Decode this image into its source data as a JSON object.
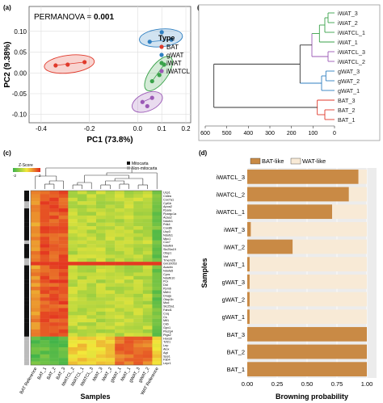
{
  "panels": {
    "a": {
      "label": "(a)"
    },
    "b": {
      "label": "(b)"
    },
    "c": {
      "label": "(c)"
    },
    "d": {
      "label": "(d)"
    }
  },
  "colors": {
    "BAT": "#e0392b",
    "gWAT": "#2f7fc1",
    "iWAT": "#3aa24a",
    "iWATCL": "#9b59b6",
    "bat_like": "#c98a45",
    "wat_like": "#f8ead6"
  },
  "chart_data": [
    {
      "type": "scatter",
      "panel": "(a)",
      "annotation_prefix": "PERMANOVA = ",
      "annotation_value": "0.001",
      "xlabel": "PC1 (73.8%)",
      "ylabel": "PC2 (9.38%)",
      "xlim": [
        -0.45,
        0.22
      ],
      "ylim": [
        -0.12,
        0.16
      ],
      "xticks": [
        "-0.4",
        "-0.2",
        "0.0",
        "0.1",
        "0.2"
      ],
      "xtick_values": [
        -0.4,
        -0.2,
        0.0,
        0.1,
        0.2
      ],
      "yticks": [
        "0.10",
        "0.05",
        "0.00",
        "-0.05",
        "-0.10"
      ],
      "ytick_values": [
        0.1,
        0.05,
        0.0,
        -0.05,
        -0.1
      ],
      "grid": true,
      "legend_title": "Type",
      "legend": [
        "BAT",
        "gWAT",
        "iWAT",
        "iWATCL"
      ],
      "series": [
        {
          "name": "BAT",
          "points": [
            [
              -0.34,
              0.018
            ],
            [
              -0.29,
              0.02
            ],
            [
              -0.22,
              0.026
            ]
          ]
        },
        {
          "name": "gWAT",
          "points": [
            [
              0.05,
              0.075
            ],
            [
              0.1,
              0.098
            ],
            [
              0.14,
              0.08
            ]
          ]
        },
        {
          "name": "iWAT",
          "points": [
            [
              0.06,
              -0.02
            ],
            [
              0.09,
              -0.005
            ],
            [
              0.11,
              0.02
            ]
          ]
        },
        {
          "name": "iWATCL",
          "points": [
            [
              0.02,
              -0.07
            ],
            [
              0.04,
              -0.08
            ],
            [
              0.06,
              -0.06
            ]
          ]
        }
      ]
    },
    {
      "type": "dendrogram",
      "panel": "(b)",
      "leaves": [
        "iWAT_3",
        "iWAT_2",
        "iWATCL_1",
        "iWAT_1",
        "iWATCL_3",
        "iWATCL_2",
        "gWAT_3",
        "gWAT_2",
        "gWAT_1",
        "BAT_3",
        "BAT_2",
        "BAT_1"
      ],
      "axis_ticks": [
        "600",
        "500",
        "400",
        "300",
        "200",
        "100",
        "0"
      ],
      "axis_values": [
        600,
        500,
        400,
        300,
        200,
        100,
        0
      ]
    },
    {
      "type": "heatmap",
      "panel": "(c)",
      "color_key_title": "Z-Score",
      "color_key_ticks": [
        "-2",
        "2"
      ],
      "legend": [
        "Mitocarta",
        "Non-mitocarta"
      ],
      "columns": [
        "BAT Reference",
        "BAT_1",
        "BAT_2",
        "BAT_3",
        "iWATCL_2",
        "iWATCL_1",
        "iWATCL_3",
        "iWAT_3",
        "iWAT_2",
        "gWAT_1",
        "iWAT_1",
        "gWAT_3",
        "gWAT_2",
        "WAT Reference"
      ],
      "rows": [
        "Ucp1",
        "Cidea",
        "Cox7a1",
        "Cpt1b",
        "Apoa2",
        "Ppara",
        "Ppargc1a",
        "Acaa2",
        "Ndufv1",
        "Pdk4",
        "Cox8b",
        "Ucp3",
        "Ndufs1",
        "Mpc1",
        "Cox7",
        "Ndufb9",
        "Slc25a19",
        "Otop1",
        "Nnt",
        "Tmem26",
        "Gm10053",
        "Acadm",
        "Ndufa5",
        "Cycs",
        "Ndufb10",
        "Pcx",
        "Dld",
        "Ppmb",
        "Mdh1",
        "Dnaja",
        "Otop1b",
        "Mod",
        "Slc25a1",
        "Fahd1",
        "Coq",
        "Cs",
        "Mlf1",
        "Ckb",
        "Gpx1",
        "Pla2g4",
        "Ptgs2",
        "Hoxc8",
        "Tcf21",
        "Lep",
        "Alox",
        "Agt",
        "Spp1",
        "Fab4",
        "Lepr1"
      ],
      "xlabel": "Samples"
    },
    {
      "type": "bar",
      "orientation": "horizontal",
      "stacked": true,
      "panel": "(d)",
      "categories": [
        "iWATCL_3",
        "iWATCL_2",
        "iWATCL_1",
        "iWAT_3",
        "iWAT_2",
        "iWAT_1",
        "gWAT_3",
        "gWAT_2",
        "gWAT_1",
        "BAT_3",
        "BAT_2",
        "BAT_1"
      ],
      "series": [
        {
          "name": "BAT-like",
          "values": [
            0.93,
            0.85,
            0.71,
            0.03,
            0.38,
            0.02,
            0.02,
            0.02,
            0.02,
            1.0,
            1.0,
            1.0
          ]
        },
        {
          "name": "WAT-like",
          "values": [
            0.07,
            0.15,
            0.29,
            0.97,
            0.62,
            0.98,
            0.98,
            0.98,
            0.98,
            0.0,
            0.0,
            0.0
          ]
        }
      ],
      "xlim": [
        0,
        1
      ],
      "xticks": [
        "0.00",
        "0.25",
        "0.50",
        "0.75",
        "1.00"
      ],
      "xtick_values": [
        0,
        0.25,
        0.5,
        0.75,
        1.0
      ],
      "xlabel": "Browning probability",
      "ylabel": "Samples"
    }
  ]
}
